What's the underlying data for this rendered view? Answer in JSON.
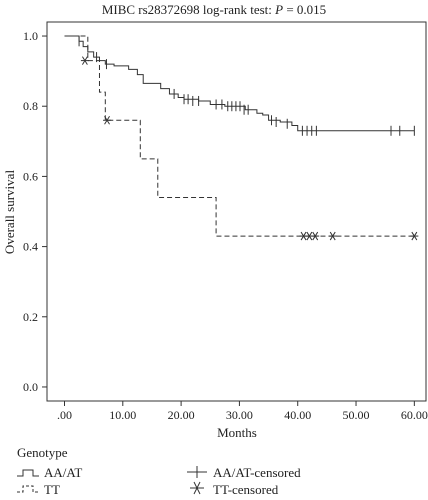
{
  "chart_data": {
    "type": "line",
    "title_text": "MIBC rs28372698 log-rank test: ",
    "title_p": "P",
    "title_rest": " = 0.015",
    "xlabel": "Months",
    "ylabel": "Overall survival",
    "xlim": [
      -3,
      62
    ],
    "ylim": [
      -0.04,
      1.04
    ],
    "x_ticks": [
      0,
      10,
      20,
      30,
      40,
      50,
      60
    ],
    "x_tick_labels": [
      ".00",
      "10.00",
      "20.00",
      "30.00",
      "40.00",
      "50.00",
      "60.00"
    ],
    "y_ticks": [
      0,
      0.2,
      0.4,
      0.6,
      0.8,
      1.0
    ],
    "y_tick_labels": [
      "0.0",
      "0.2",
      "0.4",
      "0.6",
      "0.8",
      "1.0"
    ],
    "series": [
      {
        "name": "AA/AT",
        "style": "solid",
        "color": "#333333",
        "steps": [
          [
            0,
            1.0
          ],
          [
            2.5,
            0.985
          ],
          [
            3.2,
            0.97
          ],
          [
            4,
            0.955
          ],
          [
            5,
            0.94
          ],
          [
            6,
            0.93
          ],
          [
            7,
            0.92
          ],
          [
            8.5,
            0.915
          ],
          [
            11,
            0.905
          ],
          [
            12.5,
            0.89
          ],
          [
            13.5,
            0.865
          ],
          [
            16.5,
            0.85
          ],
          [
            18,
            0.835
          ],
          [
            19.5,
            0.825
          ],
          [
            20.5,
            0.82
          ],
          [
            23,
            0.815
          ],
          [
            25,
            0.805
          ],
          [
            27.5,
            0.8
          ],
          [
            31,
            0.79
          ],
          [
            33,
            0.78
          ],
          [
            34,
            0.775
          ],
          [
            35,
            0.76
          ],
          [
            37,
            0.755
          ],
          [
            39,
            0.745
          ],
          [
            40,
            0.73
          ],
          [
            60,
            0.73
          ]
        ],
        "censored": [
          [
            2.5,
            0.985
          ],
          [
            5.5,
            0.94
          ],
          [
            7.2,
            0.92
          ],
          [
            18.8,
            0.835
          ],
          [
            20.5,
            0.82
          ],
          [
            21.2,
            0.82
          ],
          [
            22,
            0.815
          ],
          [
            23,
            0.815
          ],
          [
            26,
            0.805
          ],
          [
            27,
            0.805
          ],
          [
            28,
            0.8
          ],
          [
            28.7,
            0.8
          ],
          [
            29.4,
            0.8
          ],
          [
            30.1,
            0.8
          ],
          [
            30.8,
            0.79
          ],
          [
            31.5,
            0.79
          ],
          [
            35.5,
            0.76
          ],
          [
            36.3,
            0.755
          ],
          [
            38.2,
            0.75
          ],
          [
            40.8,
            0.73
          ],
          [
            41.6,
            0.73
          ],
          [
            42.4,
            0.73
          ],
          [
            43.2,
            0.73
          ],
          [
            56,
            0.73
          ],
          [
            57.5,
            0.73
          ],
          [
            60,
            0.73
          ]
        ]
      },
      {
        "name": "TT",
        "style": "dashed",
        "color": "#333333",
        "steps": [
          [
            0,
            1.0
          ],
          [
            4,
            0.93
          ],
          [
            6,
            0.84
          ],
          [
            7,
            0.76
          ],
          [
            13,
            0.65
          ],
          [
            16,
            0.54
          ],
          [
            26,
            0.43
          ],
          [
            60,
            0.43
          ]
        ],
        "censored": [
          [
            3.5,
            0.93
          ],
          [
            7.3,
            0.76
          ],
          [
            41,
            0.43
          ],
          [
            42,
            0.43
          ],
          [
            43,
            0.43
          ],
          [
            46,
            0.43
          ],
          [
            60,
            0.43
          ]
        ]
      }
    ],
    "legend": {
      "position": "bottom-left",
      "title": "Genotype",
      "items": [
        {
          "label": "AA/AT",
          "kind": "line",
          "style": "solid"
        },
        {
          "label": "TT",
          "kind": "line",
          "style": "dashed"
        },
        {
          "label": "AA/AT-censored",
          "kind": "marker",
          "marker": "plus"
        },
        {
          "label": "TT-censored",
          "kind": "marker",
          "marker": "star"
        }
      ]
    },
    "grid": false
  }
}
